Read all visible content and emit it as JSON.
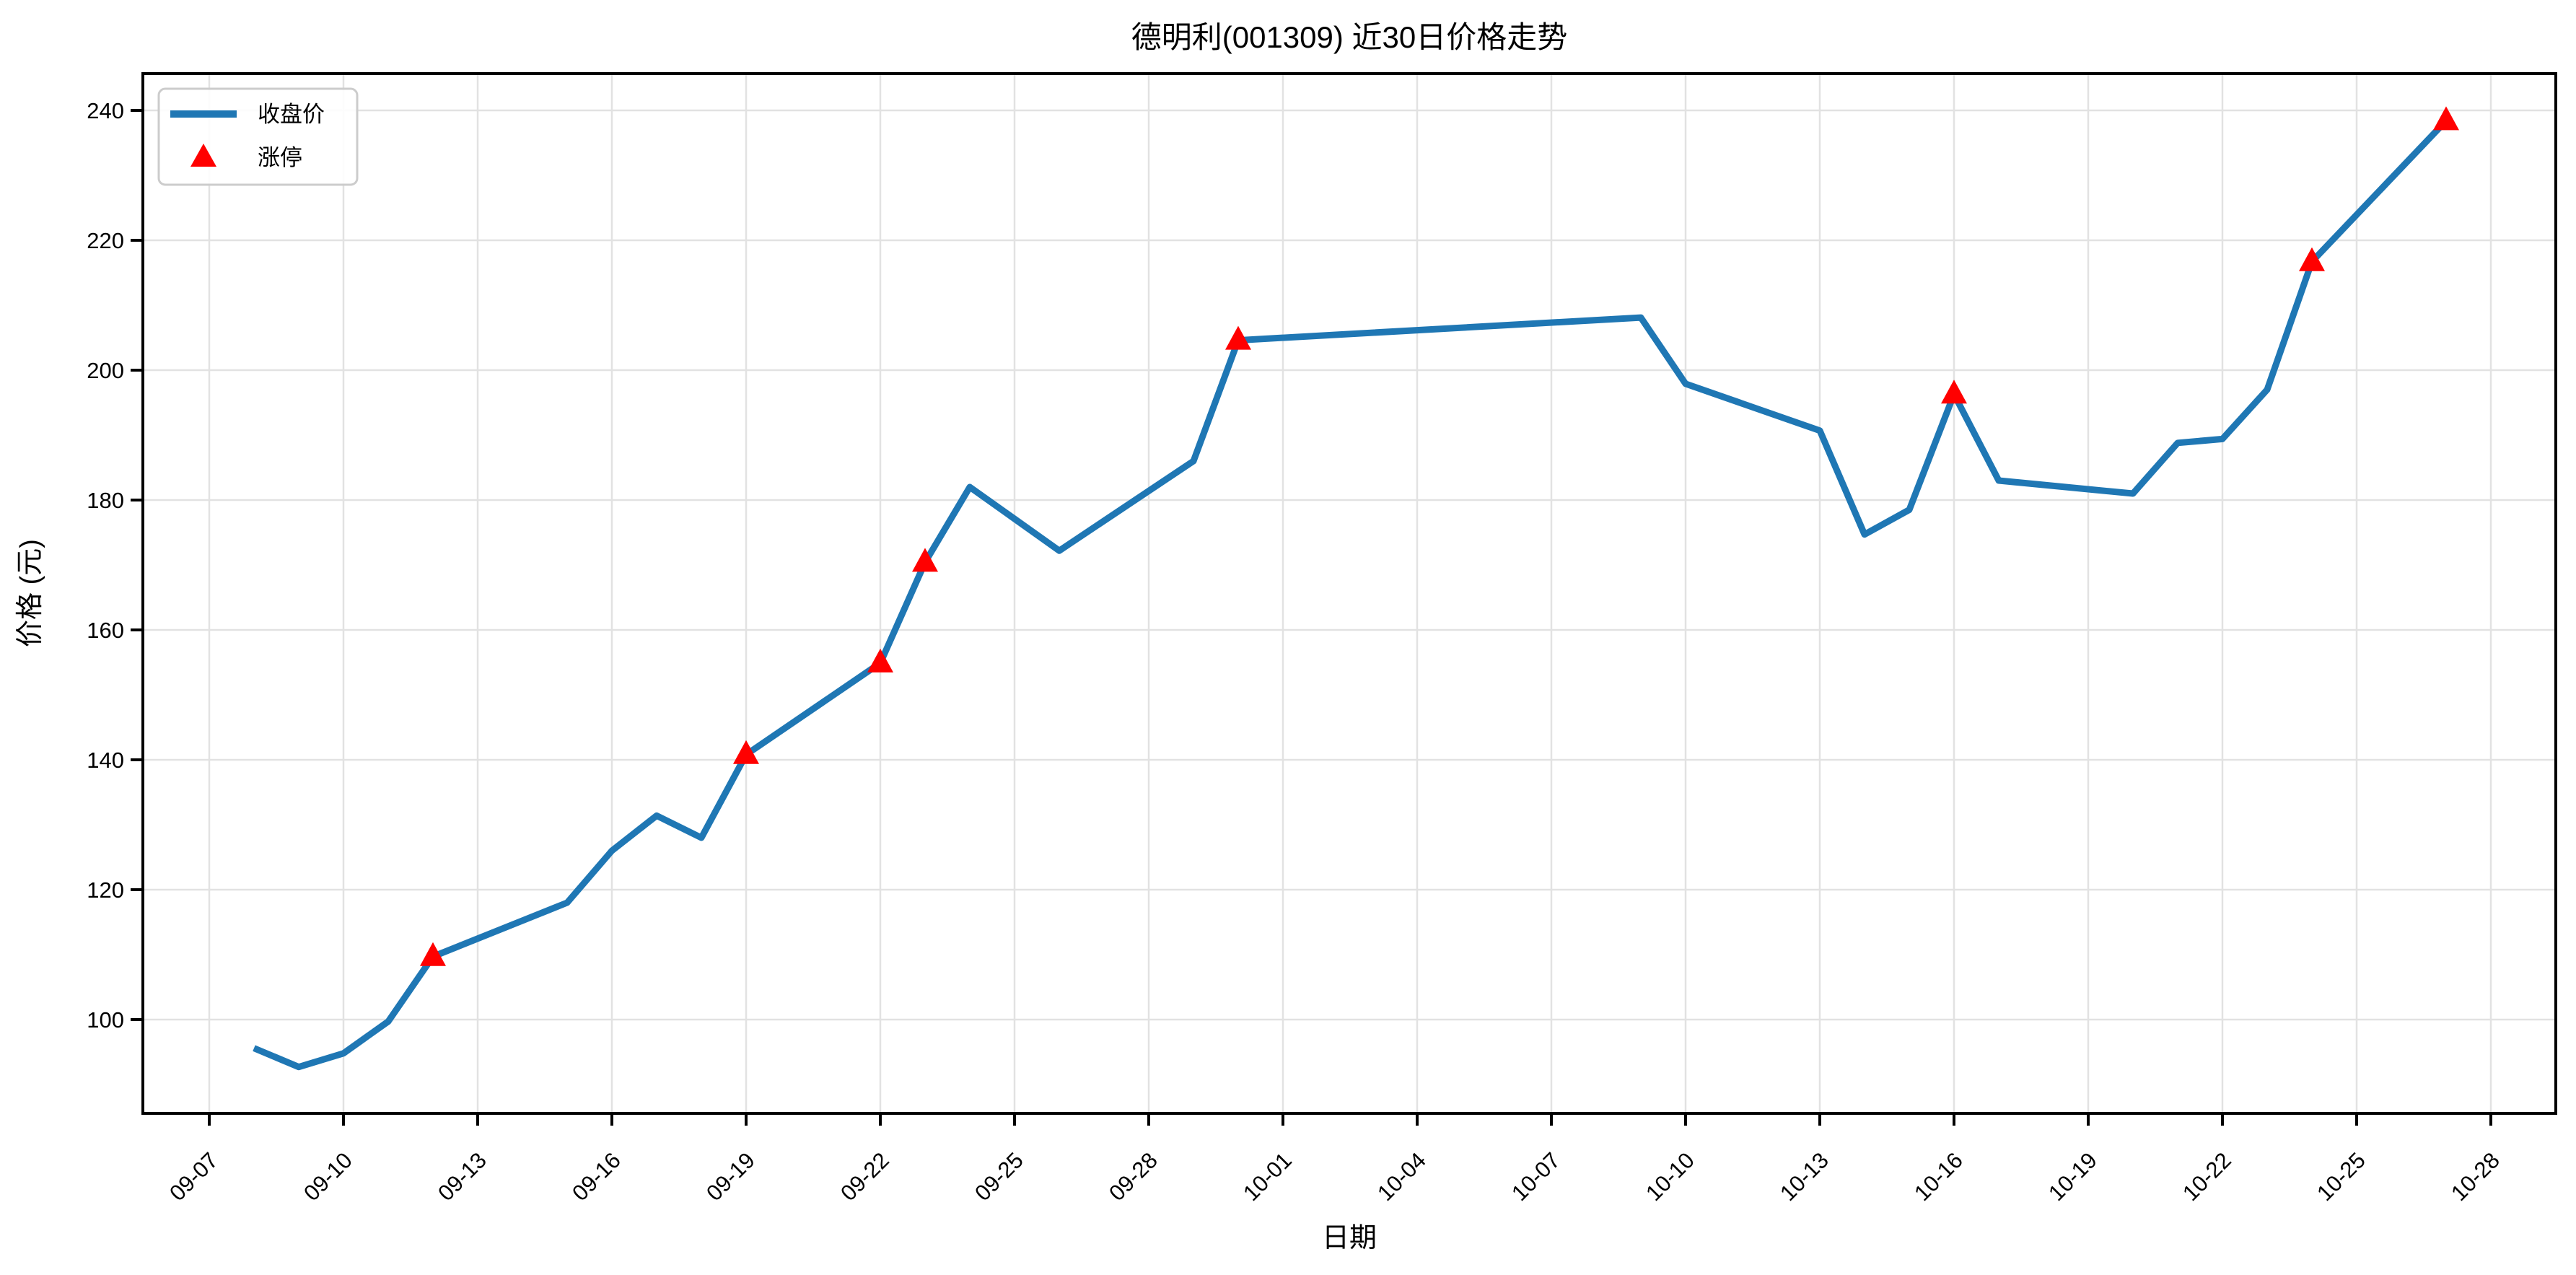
{
  "title": "德明利(001309) 近30日价格走势",
  "legend": {
    "items": [
      {
        "label": "收盘价",
        "symbol": "line"
      },
      {
        "label": "涨停",
        "symbol": "triangle-up"
      }
    ]
  },
  "chart_data": {
    "type": "line",
    "title": "德明利(001309) 近30日价格走势",
    "xlabel": "日期",
    "ylabel": "价格 (元)",
    "x": [
      "09-08",
      "09-09",
      "09-10",
      "09-11",
      "09-12",
      "09-15",
      "09-16",
      "09-17",
      "09-18",
      "09-19",
      "09-22",
      "09-23",
      "09-24",
      "09-25",
      "09-26",
      "09-29",
      "09-30",
      "10-09",
      "10-10",
      "10-13",
      "10-14",
      "10-15",
      "10-16",
      "10-17",
      "10-20",
      "10-21",
      "10-22",
      "10-23",
      "10-24",
      "10-27"
    ],
    "series": [
      {
        "name": "收盘价",
        "values": [
          95.6,
          92.7,
          94.8,
          99.7,
          109.7,
          118.0,
          126.0,
          131.4,
          128.0,
          140.8,
          154.9,
          170.4,
          182.0,
          177.1,
          172.2,
          186.0,
          204.6,
          208.1,
          197.9,
          190.7,
          174.7,
          178.5,
          196.3,
          183.0,
          181.0,
          188.8,
          189.4,
          197.0,
          216.7,
          238.4
        ]
      }
    ],
    "markers": {
      "name": "涨停",
      "dates": [
        "09-12",
        "09-19",
        "09-22",
        "09-23",
        "09-30",
        "10-16",
        "10-24",
        "10-27"
      ]
    },
    "x_ticks": [
      "09-07",
      "09-10",
      "09-13",
      "09-16",
      "09-19",
      "09-22",
      "09-25",
      "09-28",
      "10-01",
      "10-04",
      "10-07",
      "10-10",
      "10-13",
      "10-16",
      "10-19",
      "10-22",
      "10-25",
      "10-28"
    ],
    "y_ticks": [
      100,
      120,
      140,
      160,
      180,
      200,
      220,
      240
    ],
    "ylim": [
      85.6,
      245.7
    ],
    "grid": true,
    "legend_position": "upper left",
    "colors": {
      "line": "#1f77b4",
      "marker": "#ff0000",
      "grid": "#e2e2e2",
      "spine": "#000000",
      "background": "#ffffff"
    }
  }
}
